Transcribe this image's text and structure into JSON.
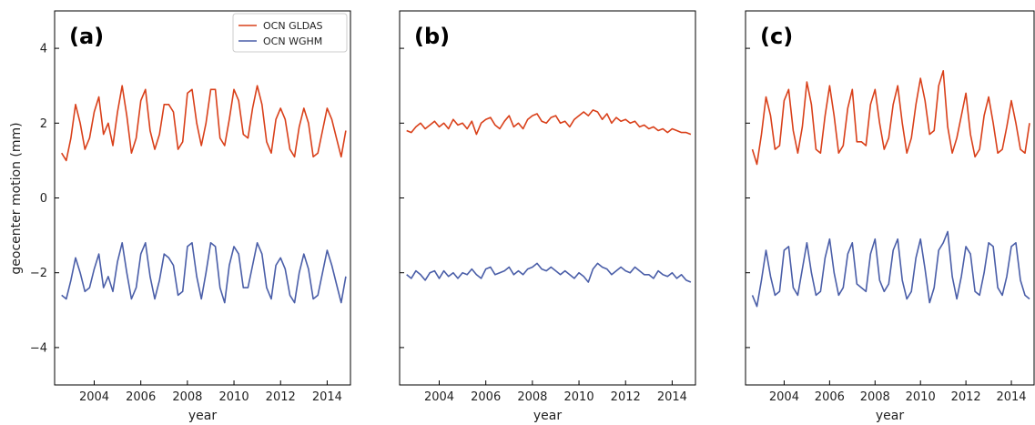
{
  "colors": {
    "gldas": "#d9401a",
    "wghm": "#4a5ea8"
  },
  "chart_data": [
    {
      "type": "line",
      "panel_label": "(a)",
      "xlabel": "year",
      "ylabel": "geocenter motion (mm)",
      "xlim": [
        2002.3,
        2015.0
      ],
      "ylim": [
        -5,
        5
      ],
      "xticks": [
        "2004",
        "2006",
        "2008",
        "2010",
        "2012",
        "2014"
      ],
      "yticks": [
        "−4",
        "−2",
        "0",
        "2",
        "4"
      ],
      "show_ytick_labels": true,
      "legend": {
        "placement": "top-right",
        "entries": [
          "OCN GLDAS",
          "OCN WGHM"
        ]
      },
      "series": [
        {
          "name": "OCN GLDAS",
          "x": [
            2002.6,
            2002.8,
            2003.0,
            2003.2,
            2003.4,
            2003.6,
            2003.8,
            2004.0,
            2004.2,
            2004.4,
            2004.6,
            2004.8,
            2005.0,
            2005.2,
            2005.4,
            2005.6,
            2005.8,
            2006.0,
            2006.2,
            2006.4,
            2006.6,
            2006.8,
            2007.0,
            2007.2,
            2007.4,
            2007.6,
            2007.8,
            2008.0,
            2008.2,
            2008.4,
            2008.6,
            2008.8,
            2009.0,
            2009.2,
            2009.4,
            2009.6,
            2009.8,
            2010.0,
            2010.2,
            2010.4,
            2010.6,
            2010.8,
            2011.0,
            2011.2,
            2011.4,
            2011.6,
            2011.8,
            2012.0,
            2012.2,
            2012.4,
            2012.6,
            2012.8,
            2013.0,
            2013.2,
            2013.4,
            2013.6,
            2013.8,
            2014.0,
            2014.2,
            2014.4,
            2014.6,
            2014.8
          ],
          "y": [
            1.2,
            1.0,
            1.6,
            2.5,
            2.0,
            1.3,
            1.6,
            2.3,
            2.7,
            1.7,
            2.0,
            1.4,
            2.3,
            3.0,
            2.2,
            1.2,
            1.6,
            2.6,
            2.9,
            1.8,
            1.3,
            1.7,
            2.5,
            2.5,
            2.3,
            1.3,
            1.5,
            2.8,
            2.9,
            2.0,
            1.4,
            2.0,
            2.9,
            2.9,
            1.6,
            1.4,
            2.1,
            2.9,
            2.6,
            1.7,
            1.6,
            2.4,
            3.0,
            2.5,
            1.5,
            1.2,
            2.1,
            2.4,
            2.1,
            1.3,
            1.1,
            1.9,
            2.4,
            2.0,
            1.1,
            1.2,
            1.8,
            2.4,
            2.1,
            1.6,
            1.1,
            1.8
          ]
        },
        {
          "name": "OCN WGHM",
          "x": [
            2002.6,
            2002.8,
            2003.0,
            2003.2,
            2003.4,
            2003.6,
            2003.8,
            2004.0,
            2004.2,
            2004.4,
            2004.6,
            2004.8,
            2005.0,
            2005.2,
            2005.4,
            2005.6,
            2005.8,
            2006.0,
            2006.2,
            2006.4,
            2006.6,
            2006.8,
            2007.0,
            2007.2,
            2007.4,
            2007.6,
            2007.8,
            2008.0,
            2008.2,
            2008.4,
            2008.6,
            2008.8,
            2009.0,
            2009.2,
            2009.4,
            2009.6,
            2009.8,
            2010.0,
            2010.2,
            2010.4,
            2010.6,
            2010.8,
            2011.0,
            2011.2,
            2011.4,
            2011.6,
            2011.8,
            2012.0,
            2012.2,
            2012.4,
            2012.6,
            2012.8,
            2013.0,
            2013.2,
            2013.4,
            2013.6,
            2013.8,
            2014.0,
            2014.2,
            2014.4,
            2014.6,
            2014.8
          ],
          "y": [
            -2.6,
            -2.7,
            -2.2,
            -1.6,
            -2.0,
            -2.5,
            -2.4,
            -1.9,
            -1.5,
            -2.4,
            -2.1,
            -2.5,
            -1.7,
            -1.2,
            -2.0,
            -2.7,
            -2.4,
            -1.5,
            -1.2,
            -2.1,
            -2.7,
            -2.2,
            -1.5,
            -1.6,
            -1.8,
            -2.6,
            -2.5,
            -1.3,
            -1.2,
            -2.1,
            -2.7,
            -2.0,
            -1.2,
            -1.3,
            -2.4,
            -2.8,
            -1.8,
            -1.3,
            -1.5,
            -2.4,
            -2.4,
            -1.8,
            -1.2,
            -1.5,
            -2.4,
            -2.7,
            -1.8,
            -1.6,
            -1.9,
            -2.6,
            -2.8,
            -2.0,
            -1.5,
            -1.9,
            -2.7,
            -2.6,
            -2.0,
            -1.4,
            -1.8,
            -2.3,
            -2.8,
            -2.1
          ]
        }
      ]
    },
    {
      "type": "line",
      "panel_label": "(b)",
      "xlabel": "year",
      "ylabel": "",
      "xlim": [
        2002.3,
        2015.0
      ],
      "ylim": [
        -5,
        5
      ],
      "xticks": [
        "2004",
        "2006",
        "2008",
        "2010",
        "2012",
        "2014"
      ],
      "yticks": [
        "−4",
        "−2",
        "0",
        "2",
        "4"
      ],
      "show_ytick_labels": false,
      "series": [
        {
          "name": "OCN GLDAS",
          "x": [
            2002.6,
            2002.8,
            2003.0,
            2003.2,
            2003.4,
            2003.6,
            2003.8,
            2004.0,
            2004.2,
            2004.4,
            2004.6,
            2004.8,
            2005.0,
            2005.2,
            2005.4,
            2005.6,
            2005.8,
            2006.0,
            2006.2,
            2006.4,
            2006.6,
            2006.8,
            2007.0,
            2007.2,
            2007.4,
            2007.6,
            2007.8,
            2008.0,
            2008.2,
            2008.4,
            2008.6,
            2008.8,
            2009.0,
            2009.2,
            2009.4,
            2009.6,
            2009.8,
            2010.0,
            2010.2,
            2010.4,
            2010.6,
            2010.8,
            2011.0,
            2011.2,
            2011.4,
            2011.6,
            2011.8,
            2012.0,
            2012.2,
            2012.4,
            2012.6,
            2012.8,
            2013.0,
            2013.2,
            2013.4,
            2013.6,
            2013.8,
            2014.0,
            2014.2,
            2014.4,
            2014.6,
            2014.8
          ],
          "y": [
            1.8,
            1.75,
            1.9,
            2.0,
            1.85,
            1.95,
            2.05,
            1.9,
            2.0,
            1.85,
            2.1,
            1.95,
            2.0,
            1.85,
            2.05,
            1.7,
            2.0,
            2.1,
            2.15,
            1.95,
            1.85,
            2.05,
            2.2,
            1.9,
            2.0,
            1.85,
            2.1,
            2.2,
            2.25,
            2.05,
            2.0,
            2.15,
            2.2,
            2.0,
            2.05,
            1.9,
            2.1,
            2.2,
            2.3,
            2.2,
            2.35,
            2.3,
            2.1,
            2.25,
            2.0,
            2.15,
            2.05,
            2.1,
            2.0,
            2.05,
            1.9,
            1.95,
            1.85,
            1.9,
            1.8,
            1.85,
            1.75,
            1.85,
            1.8,
            1.75,
            1.75,
            1.7
          ]
        },
        {
          "name": "OCN WGHM",
          "x": [
            2002.6,
            2002.8,
            2003.0,
            2003.2,
            2003.4,
            2003.6,
            2003.8,
            2004.0,
            2004.2,
            2004.4,
            2004.6,
            2004.8,
            2005.0,
            2005.2,
            2005.4,
            2005.6,
            2005.8,
            2006.0,
            2006.2,
            2006.4,
            2006.6,
            2006.8,
            2007.0,
            2007.2,
            2007.4,
            2007.6,
            2007.8,
            2008.0,
            2008.2,
            2008.4,
            2008.6,
            2008.8,
            2009.0,
            2009.2,
            2009.4,
            2009.6,
            2009.8,
            2010.0,
            2010.2,
            2010.4,
            2010.6,
            2010.8,
            2011.0,
            2011.2,
            2011.4,
            2011.6,
            2011.8,
            2012.0,
            2012.2,
            2012.4,
            2012.6,
            2012.8,
            2013.0,
            2013.2,
            2013.4,
            2013.6,
            2013.8,
            2014.0,
            2014.2,
            2014.4,
            2014.6,
            2014.8
          ],
          "y": [
            -2.05,
            -2.15,
            -1.95,
            -2.05,
            -2.2,
            -2.0,
            -1.95,
            -2.15,
            -1.95,
            -2.1,
            -2.0,
            -2.15,
            -2.0,
            -2.05,
            -1.9,
            -2.05,
            -2.15,
            -1.9,
            -1.85,
            -2.05,
            -2.0,
            -1.95,
            -1.85,
            -2.05,
            -1.95,
            -2.05,
            -1.9,
            -1.85,
            -1.75,
            -1.9,
            -1.95,
            -1.85,
            -1.95,
            -2.05,
            -1.95,
            -2.05,
            -2.15,
            -2.0,
            -2.1,
            -2.25,
            -1.9,
            -1.75,
            -1.85,
            -1.9,
            -2.05,
            -1.95,
            -1.85,
            -1.95,
            -2.0,
            -1.85,
            -1.95,
            -2.05,
            -2.05,
            -2.15,
            -1.95,
            -2.05,
            -2.1,
            -2.0,
            -2.15,
            -2.05,
            -2.2,
            -2.25
          ]
        }
      ]
    },
    {
      "type": "line",
      "panel_label": "(c)",
      "xlabel": "year",
      "ylabel": "",
      "xlim": [
        2002.3,
        2015.0
      ],
      "ylim": [
        -5,
        5
      ],
      "xticks": [
        "2004",
        "2006",
        "2008",
        "2010",
        "2012",
        "2014"
      ],
      "yticks": [
        "−4",
        "−2",
        "0",
        "2",
        "4"
      ],
      "show_ytick_labels": false,
      "series": [
        {
          "name": "OCN GLDAS",
          "x": [
            2002.6,
            2002.8,
            2003.0,
            2003.2,
            2003.4,
            2003.6,
            2003.8,
            2004.0,
            2004.2,
            2004.4,
            2004.6,
            2004.8,
            2005.0,
            2005.2,
            2005.4,
            2005.6,
            2005.8,
            2006.0,
            2006.2,
            2006.4,
            2006.6,
            2006.8,
            2007.0,
            2007.2,
            2007.4,
            2007.6,
            2007.8,
            2008.0,
            2008.2,
            2008.4,
            2008.6,
            2008.8,
            2009.0,
            2009.2,
            2009.4,
            2009.6,
            2009.8,
            2010.0,
            2010.2,
            2010.4,
            2010.6,
            2010.8,
            2011.0,
            2011.2,
            2011.4,
            2011.6,
            2011.8,
            2012.0,
            2012.2,
            2012.4,
            2012.6,
            2012.8,
            2013.0,
            2013.2,
            2013.4,
            2013.6,
            2013.8,
            2014.0,
            2014.2,
            2014.4,
            2014.6,
            2014.8
          ],
          "y": [
            1.3,
            0.9,
            1.7,
            2.7,
            2.2,
            1.3,
            1.4,
            2.6,
            2.9,
            1.8,
            1.2,
            1.9,
            3.1,
            2.5,
            1.3,
            1.2,
            2.2,
            3.0,
            2.2,
            1.2,
            1.4,
            2.4,
            2.9,
            1.5,
            1.5,
            1.4,
            2.5,
            2.9,
            2.0,
            1.3,
            1.6,
            2.5,
            3.0,
            2.0,
            1.2,
            1.6,
            2.5,
            3.2,
            2.6,
            1.7,
            1.8,
            3.0,
            3.4,
            1.9,
            1.2,
            1.6,
            2.2,
            2.8,
            1.7,
            1.1,
            1.3,
            2.2,
            2.7,
            2.0,
            1.2,
            1.3,
            1.9,
            2.6,
            2.0,
            1.3,
            1.2,
            2.0
          ]
        },
        {
          "name": "OCN WGHM",
          "x": [
            2002.6,
            2002.8,
            2003.0,
            2003.2,
            2003.4,
            2003.6,
            2003.8,
            2004.0,
            2004.2,
            2004.4,
            2004.6,
            2004.8,
            2005.0,
            2005.2,
            2005.4,
            2005.6,
            2005.8,
            2006.0,
            2006.2,
            2006.4,
            2006.6,
            2006.8,
            2007.0,
            2007.2,
            2007.4,
            2007.6,
            2007.8,
            2008.0,
            2008.2,
            2008.4,
            2008.6,
            2008.8,
            2009.0,
            2009.2,
            2009.4,
            2009.6,
            2009.8,
            2010.0,
            2010.2,
            2010.4,
            2010.6,
            2010.8,
            2011.0,
            2011.2,
            2011.4,
            2011.6,
            2011.8,
            2012.0,
            2012.2,
            2012.4,
            2012.6,
            2012.8,
            2013.0,
            2013.2,
            2013.4,
            2013.6,
            2013.8,
            2014.0,
            2014.2,
            2014.4,
            2014.6,
            2014.8
          ],
          "y": [
            -2.6,
            -2.9,
            -2.2,
            -1.4,
            -2.1,
            -2.6,
            -2.5,
            -1.4,
            -1.3,
            -2.4,
            -2.6,
            -1.9,
            -1.2,
            -2.0,
            -2.6,
            -2.5,
            -1.6,
            -1.1,
            -2.0,
            -2.6,
            -2.4,
            -1.5,
            -1.2,
            -2.3,
            -2.4,
            -2.5,
            -1.5,
            -1.1,
            -2.2,
            -2.5,
            -2.3,
            -1.4,
            -1.1,
            -2.2,
            -2.7,
            -2.5,
            -1.6,
            -1.1,
            -1.9,
            -2.8,
            -2.4,
            -1.4,
            -1.2,
            -0.9,
            -2.1,
            -2.7,
            -2.1,
            -1.3,
            -1.5,
            -2.5,
            -2.6,
            -2.0,
            -1.2,
            -1.3,
            -2.4,
            -2.6,
            -2.1,
            -1.3,
            -1.2,
            -2.2,
            -2.6,
            -2.7
          ]
        }
      ]
    }
  ]
}
